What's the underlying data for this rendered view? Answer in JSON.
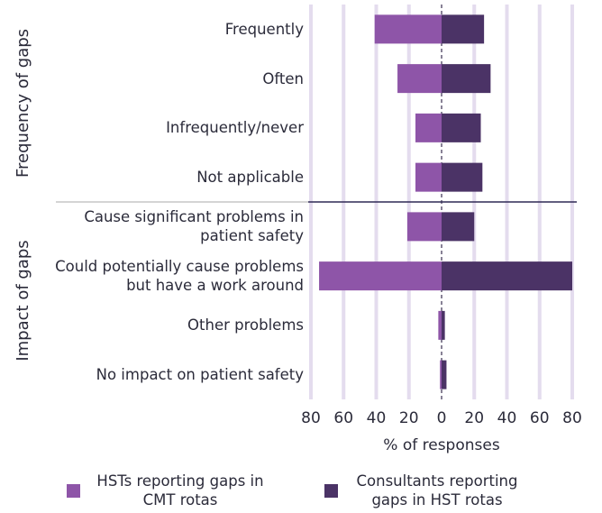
{
  "chart_data": {
    "type": "bar",
    "orientation": "horizontal",
    "panels": [
      {
        "name": "Frequency of gaps",
        "categories": [
          "Frequently",
          "Often",
          "Infrequently/never",
          "Not applicable"
        ]
      },
      {
        "name": "Impact of gaps",
        "categories": [
          "Cause significant problems in patient safety",
          "Could potentially cause problems but have a work around",
          "Other problems",
          "No impact on patient safety"
        ]
      }
    ],
    "series": [
      {
        "name": "HSTs reporting gaps in CMT rotas",
        "color": "#8e55a8",
        "values": [
          -41,
          -27,
          -16,
          -16,
          -21,
          -75,
          -2,
          -1
        ]
      },
      {
        "name": "Consultants reporting gaps in HST rotas",
        "color": "#4b3366",
        "values": [
          26,
          30,
          24,
          25,
          20,
          80,
          2,
          3
        ]
      }
    ],
    "xlabel": "% of responses",
    "xlim": [
      -80,
      80
    ],
    "xticks": [
      {
        "value": -80,
        "label": "80"
      },
      {
        "value": -60,
        "label": "60"
      },
      {
        "value": -40,
        "label": "40"
      },
      {
        "value": -20,
        "label": "20"
      },
      0,
      20,
      40,
      60,
      80
    ],
    "grid": true
  }
}
